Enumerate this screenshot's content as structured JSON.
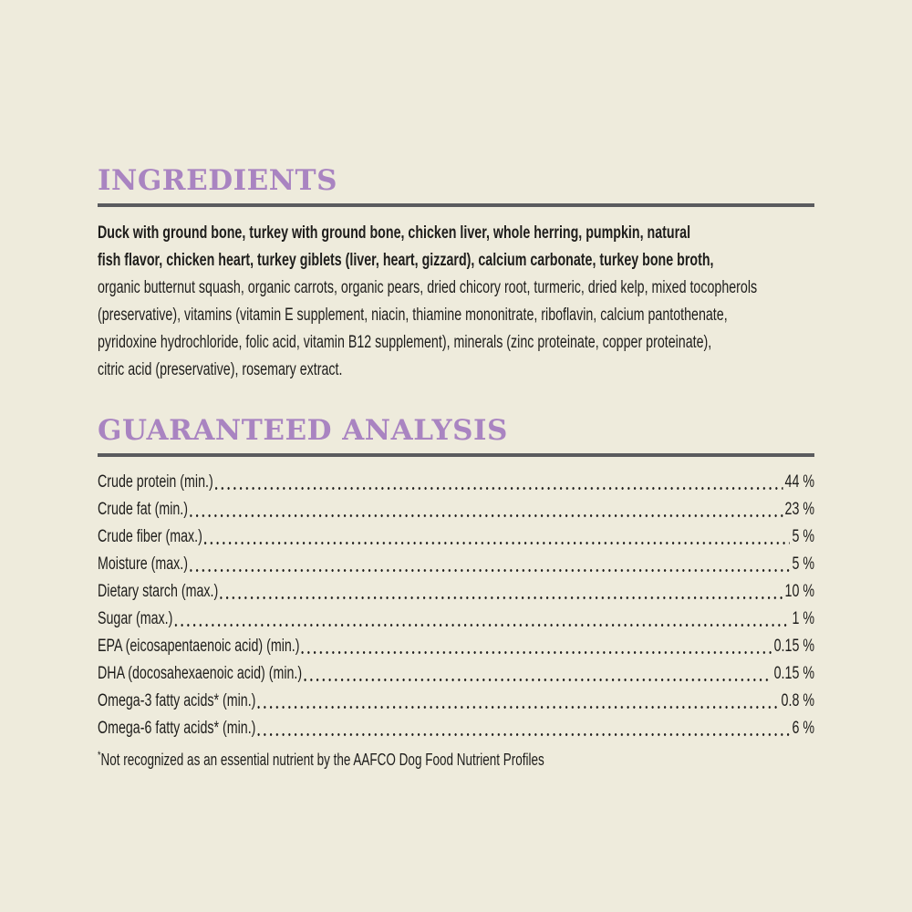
{
  "label": {
    "background_color": "#EEEBDC",
    "accent_color": "#A984C1",
    "rule_color": "#5A5B5E",
    "text_color": "#1E1D1B"
  },
  "ingredients_section": {
    "heading": "INGREDIENTS",
    "lines": [
      {
        "text": "Duck with ground bone, turkey with ground bone, chicken liver, whole herring, pumpkin, natural",
        "emphasis": "bold"
      },
      {
        "text": "fish flavor, chicken heart, turkey giblets (liver, heart, gizzard), calcium carbonate, turkey bone broth,",
        "emphasis": "bold"
      },
      {
        "text": "organic butternut squash, organic carrots, organic pears, dried chicory root, turmeric, dried kelp, mixed tocopherols",
        "emphasis": ""
      },
      {
        "text": "(preservative), vitamins (vitamin E supplement, niacin, thiamine mononitrate, riboflavin, calcium pantothenate,",
        "emphasis": ""
      },
      {
        "text": "pyridoxine hydrochloride, folic acid, vitamin B12 supplement), minerals (zinc proteinate, copper proteinate),",
        "emphasis": ""
      },
      {
        "text": "citric acid (preservative), rosemary extract.",
        "emphasis": ""
      }
    ]
  },
  "analysis_section": {
    "heading": "GUARANTEED ANALYSIS",
    "rows": [
      {
        "label": "Crude protein (min.)",
        "value": "44 %"
      },
      {
        "label": "Crude fat (min.)",
        "value": "23 %"
      },
      {
        "label": "Crude fiber (max.)",
        "value": "5 %"
      },
      {
        "label": "Moisture (max.)",
        "value": "5 %"
      },
      {
        "label": "Dietary starch (max.)",
        "value": "10 %"
      },
      {
        "label": "Sugar (max.)",
        "value": "1 %"
      },
      {
        "label": "EPA (eicosapentaenoic acid) (min.)",
        "value": "0.15 %"
      },
      {
        "label": "DHA (docosahexaenoic acid) (min.)",
        "value": "0.15 %"
      },
      {
        "label": "Omega-3 fatty acids* (min.)",
        "value": "0.8 %"
      },
      {
        "label": "Omega-6 fatty acids* (min.)",
        "value": "6 %"
      }
    ],
    "footnote_marker": "*",
    "footnote_text": "Not recognized as an essential nutrient by the AAFCO Dog Food Nutrient Profiles"
  }
}
